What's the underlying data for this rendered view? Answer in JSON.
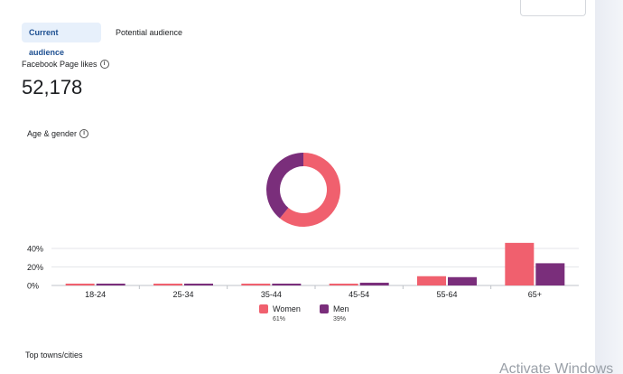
{
  "tabs": {
    "current": "Current audience",
    "potential": "Potential audience"
  },
  "page_likes": {
    "label": "Facebook Page likes",
    "value": "52,178"
  },
  "age_gender": {
    "label": "Age & gender"
  },
  "top_towns": {
    "label": "Top towns/cities"
  },
  "watermark": "Activate Windows",
  "colors": {
    "women": "#f0606e",
    "men": "#7a2e7b",
    "accent": "#1d4f91"
  },
  "chart_data": [
    {
      "type": "pie",
      "categories": [
        "Women",
        "Men"
      ],
      "values": [
        61,
        39
      ]
    },
    {
      "type": "bar",
      "categories": [
        "18-24",
        "25-34",
        "35-44",
        "45-54",
        "55-64",
        "65+"
      ],
      "series": [
        {
          "name": "Women",
          "values": [
            2,
            2,
            2,
            2,
            10,
            46
          ]
        },
        {
          "name": "Men",
          "values": [
            2,
            2,
            2,
            3,
            9,
            24
          ]
        }
      ],
      "yticks": [
        "40%",
        "20%",
        "0%"
      ],
      "ylim": [
        0,
        50
      ],
      "grid": true
    }
  ],
  "legend": [
    {
      "name": "Women",
      "pct": "61%"
    },
    {
      "name": "Men",
      "pct": "39%"
    }
  ]
}
